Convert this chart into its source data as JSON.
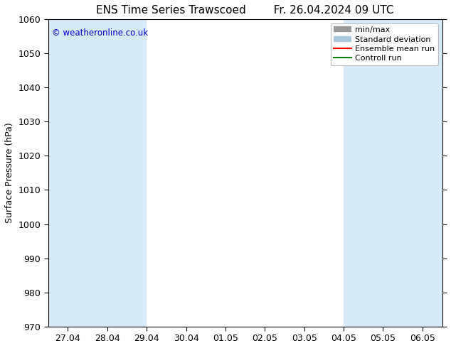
{
  "title": "ENS Time Series Trawscoed        Fr. 26.04.2024 09 UTC",
  "ylabel": "Surface Pressure (hPa)",
  "ylim": [
    970,
    1060
  ],
  "yticks": [
    970,
    980,
    990,
    1000,
    1010,
    1020,
    1030,
    1040,
    1050,
    1060
  ],
  "xtick_labels": [
    "27.04",
    "28.04",
    "29.04",
    "30.04",
    "01.05",
    "02.05",
    "03.05",
    "04.05",
    "05.05",
    "06.05"
  ],
  "xtick_positions": [
    0,
    1,
    2,
    3,
    4,
    5,
    6,
    7,
    8,
    9
  ],
  "xlim": [
    -0.5,
    9.5
  ],
  "watermark": "© weatheronline.co.uk",
  "watermark_color": "#0000cc",
  "shaded_band_color": "#d6eaf8",
  "shaded_intervals": [
    [
      -0.5,
      2.0
    ],
    [
      7.0,
      9.5
    ]
  ],
  "legend_entries": [
    "min/max",
    "Standard deviation",
    "Ensemble mean run",
    "Controll run"
  ],
  "legend_line_colors": [
    "#999999",
    "#aac8dc",
    "#ff0000",
    "#008000"
  ],
  "background_color": "#ffffff",
  "plot_bg_color": "#ffffff",
  "font_size": 9,
  "title_font_size": 11
}
